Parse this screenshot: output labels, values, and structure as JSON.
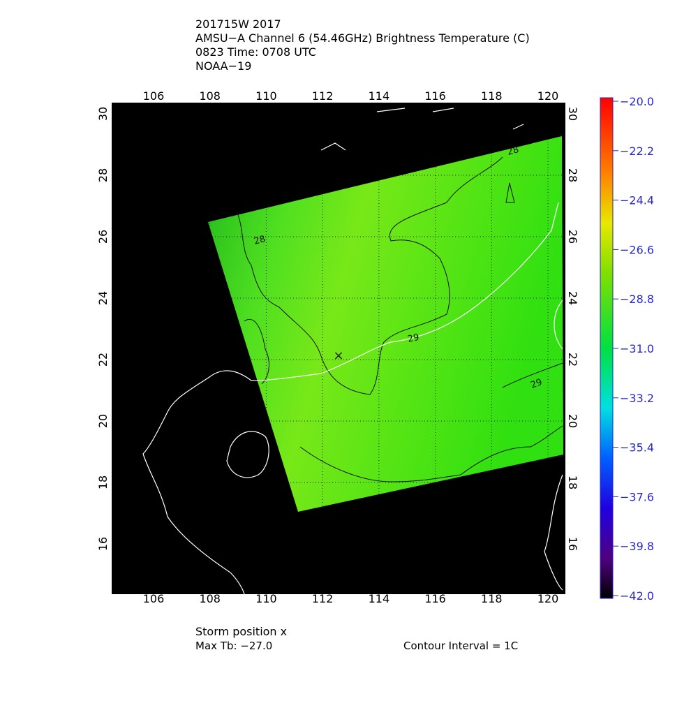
{
  "header": {
    "lines": [
      "201715W 2017",
      "AMSU−A Channel 6 (54.46GHz) Brightness Temperature (C)",
      "0823 Time: 0708 UTC",
      "NOAA−19"
    ]
  },
  "map": {
    "lon_ticks": [
      106,
      108,
      110,
      112,
      114,
      116,
      118,
      120
    ],
    "lat_ticks": [
      16,
      18,
      20,
      22,
      24,
      26,
      28,
      30
    ],
    "contour_labels": [
      "28",
      "28",
      "29",
      "29"
    ]
  },
  "colorbar": {
    "labels": [
      "−20.0",
      "−22.2",
      "−24.4",
      "−26.6",
      "−28.8",
      "−31.0",
      "−33.2",
      "−35.4",
      "−37.6",
      "−39.8",
      "−42.0"
    ]
  },
  "footer": {
    "storm": "Storm position x",
    "max_tb": "Max Tb: −27.0",
    "contour_interval": "Contour Interval = 1C"
  }
}
